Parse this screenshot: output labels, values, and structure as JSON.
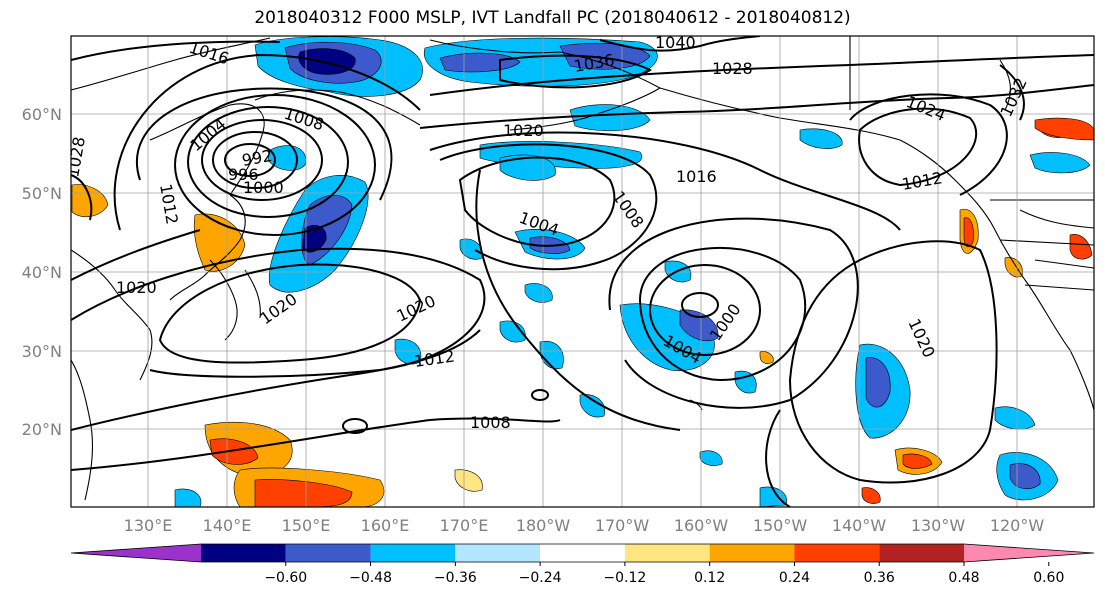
{
  "title": "2018040312 F000 MSLP, IVT Landfall PC (2018040612 - 2018040812)",
  "lat_labels": [
    "60°N",
    "50°N",
    "40°N",
    "30°N",
    "20°N"
  ],
  "lon_labels": [
    "130°E",
    "140°E",
    "150°E",
    "160°E",
    "170°E",
    "180°W",
    "170°W",
    "160°W",
    "150°W",
    "140°W",
    "130°W",
    "120°W"
  ],
  "contour_labels": [
    "1016",
    "1040",
    "1036",
    "1028",
    "1008",
    "1020",
    "1024",
    "1032",
    "1004",
    "992",
    "996",
    "1000",
    "1016",
    "1008",
    "1012",
    "1004",
    "1020",
    "1020",
    "1012",
    "1004",
    "1000",
    "1020",
    "1008",
    "1020",
    "1012",
    "1028"
  ],
  "colorbar": {
    "tick_labels": [
      "−0.60",
      "−0.48",
      "−0.36",
      "−0.24",
      "−0.12",
      "0.12",
      "0.24",
      "0.36",
      "0.48",
      "0.60"
    ],
    "colors": [
      "#9933cc",
      "#000080",
      "#3d5acc",
      "#00bfff",
      "#b3e6ff",
      "#ffffff",
      "#ffe680",
      "#ffa500",
      "#ff4000",
      "#b22222",
      "#ff88b0"
    ]
  },
  "colors": {
    "contour": "#000000",
    "coast": "#000000",
    "grid": "#a0a0a0"
  }
}
